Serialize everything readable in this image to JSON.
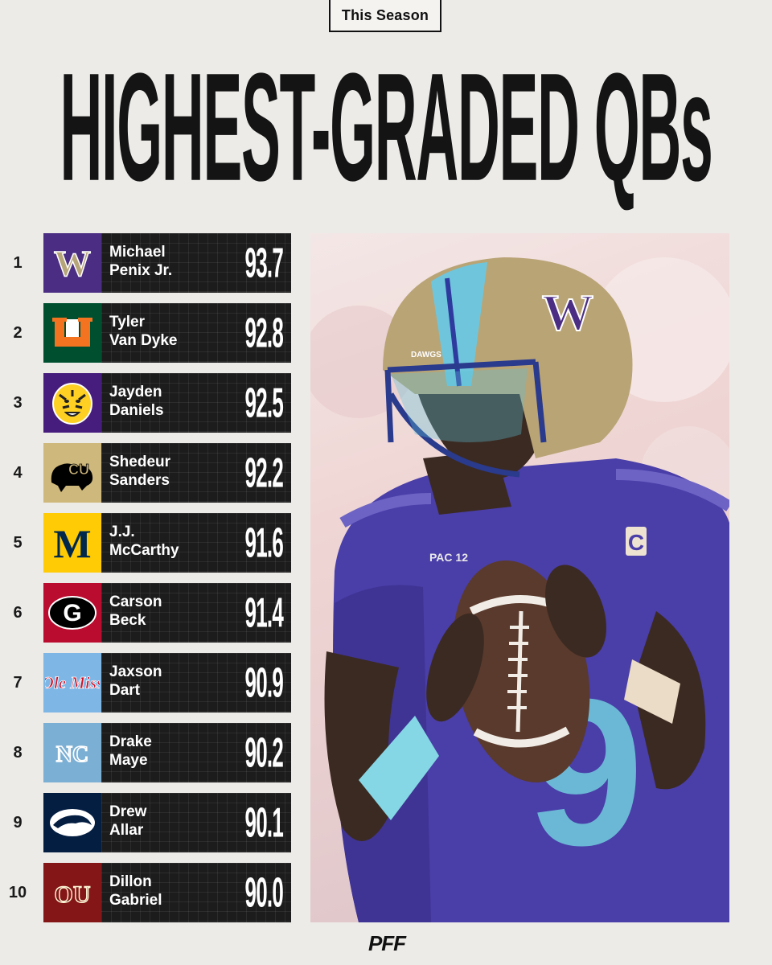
{
  "badge": "This Season",
  "title": "HIGHEST-GRADED QBs",
  "players": [
    {
      "rank": "1",
      "first": "Michael",
      "last": "Penix Jr.",
      "grade": "93.7",
      "school": "Washington",
      "logo_bg": "#4b2e83",
      "logo_fg": "#b7a57a"
    },
    {
      "rank": "2",
      "first": "Tyler",
      "last": "Van Dyke",
      "grade": "92.8",
      "school": "Miami",
      "logo_bg": "#005030",
      "logo_fg": "#f47321"
    },
    {
      "rank": "3",
      "first": "Jayden",
      "last": "Daniels",
      "grade": "92.5",
      "school": "LSU",
      "logo_bg": "#461d7c",
      "logo_fg": "#fdd023"
    },
    {
      "rank": "4",
      "first": "Shedeur",
      "last": "Sanders",
      "grade": "92.2",
      "school": "Colorado",
      "logo_bg": "#cfb87c",
      "logo_fg": "#000000"
    },
    {
      "rank": "5",
      "first": "J.J.",
      "last": "McCarthy",
      "grade": "91.6",
      "school": "Michigan",
      "logo_bg": "#ffcb05",
      "logo_fg": "#00274c"
    },
    {
      "rank": "6",
      "first": "Carson",
      "last": "Beck",
      "grade": "91.4",
      "school": "Georgia",
      "logo_bg": "#ba0c2f",
      "logo_fg": "#000000"
    },
    {
      "rank": "7",
      "first": "Jaxson",
      "last": "Dart",
      "grade": "90.9",
      "school": "Ole Miss",
      "logo_bg": "#7eb6e6",
      "logo_fg": "#ce1126"
    },
    {
      "rank": "8",
      "first": "Drake",
      "last": "Maye",
      "grade": "90.2",
      "school": "North Carolina",
      "logo_bg": "#7bafd4",
      "logo_fg": "#ffffff"
    },
    {
      "rank": "9",
      "first": "Drew",
      "last": "Allar",
      "grade": "90.1",
      "school": "Penn State",
      "logo_bg": "#041e42",
      "logo_fg": "#ffffff"
    },
    {
      "rank": "10",
      "first": "Dillon",
      "last": "Gabriel",
      "grade": "90.0",
      "school": "Oklahoma",
      "logo_bg": "#841617",
      "logo_fg": "#fdf9d8"
    }
  ],
  "logo_texts": {
    "washington": "W",
    "miami": "U",
    "colorado": "CU",
    "michigan": "M",
    "georgia": "G",
    "olemiss": "Ole Miss",
    "unc": "NC",
    "oklahoma": "OU"
  },
  "photo": {
    "helmet_text": "DAWGS",
    "helmet_logo": "W",
    "captain_patch": "C",
    "jersey_number": "9",
    "conference_patch": "PAC 12"
  },
  "brand": "PFF"
}
